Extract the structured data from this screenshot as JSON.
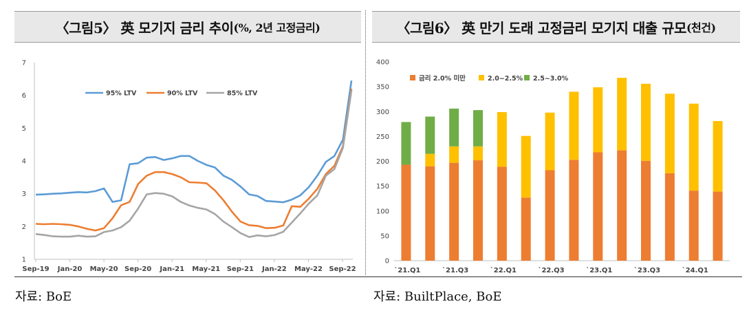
{
  "left": {
    "title_main": "〈그림5〉 英 모기지 금리 추이",
    "title_sub": "(%, 2년 고정금리)",
    "source": "자료: BoE"
  },
  "right": {
    "title_main": "〈그림6〉 英 만기 도래 고정금리 모기지 대출 규모",
    "title_sub": "(천건)",
    "source": "자료: BuiltPlace, BoE"
  },
  "chart_data": [
    {
      "type": "line",
      "x_tick_labels": [
        "Sep-19",
        "Jan-20",
        "May-20",
        "Sep-20",
        "Jan-21",
        "May-21",
        "Sep-21",
        "Jan-22",
        "May-22",
        "Sep-22"
      ],
      "y_ticks": [
        1,
        2,
        3,
        4,
        5,
        6,
        7
      ],
      "ylim": [
        1,
        7
      ],
      "legend_position": "top-center",
      "grid": false,
      "series": [
        {
          "name": "95% LTV",
          "color": "#5b9bd5",
          "values": [
            2.97,
            2.98,
            3.0,
            3.01,
            3.03,
            3.05,
            3.04,
            3.08,
            3.16,
            2.75,
            2.8,
            3.9,
            3.93,
            4.1,
            4.12,
            4.03,
            4.08,
            4.15,
            4.15,
            4.0,
            3.88,
            3.8,
            3.55,
            3.42,
            3.22,
            2.98,
            2.93,
            2.78,
            2.76,
            2.74,
            2.82,
            2.95,
            3.2,
            3.55,
            3.97,
            4.15,
            4.65,
            6.45
          ]
        },
        {
          "name": "90% LTV",
          "color": "#ed7d31",
          "values": [
            2.08,
            2.07,
            2.08,
            2.07,
            2.05,
            2.0,
            1.93,
            1.88,
            1.95,
            2.25,
            2.65,
            2.75,
            3.3,
            3.55,
            3.66,
            3.66,
            3.6,
            3.5,
            3.35,
            3.34,
            3.32,
            3.1,
            2.8,
            2.45,
            2.15,
            2.04,
            2.02,
            1.95,
            1.96,
            2.03,
            2.62,
            2.6,
            2.85,
            3.15,
            3.6,
            3.85,
            4.45,
            6.2
          ]
        },
        {
          "name": "85% LTV",
          "color": "#a5a5a5",
          "values": [
            1.77,
            1.74,
            1.7,
            1.69,
            1.69,
            1.72,
            1.69,
            1.7,
            1.83,
            1.88,
            1.98,
            2.18,
            2.55,
            2.98,
            3.02,
            3.0,
            2.92,
            2.75,
            2.64,
            2.57,
            2.52,
            2.38,
            2.15,
            1.98,
            1.8,
            1.68,
            1.73,
            1.7,
            1.74,
            1.84,
            2.12,
            2.4,
            2.7,
            2.95,
            3.55,
            3.75,
            4.4,
            6.15
          ]
        }
      ]
    },
    {
      "type": "bar",
      "stacked": true,
      "categories": [
        "`21.Q1",
        "`21.Q2",
        "`21.Q3",
        "`21.Q4",
        "`22.Q1",
        "`22.Q2",
        "`22.Q3",
        "`22.Q4",
        "`23.Q1",
        "`23.Q2",
        "`23.Q3",
        "`23.Q4",
        "`24.Q1",
        "`24.Q2"
      ],
      "x_tick_labels": [
        "`21.Q1",
        "`21.Q3",
        "`22.Q1",
        "`22.Q3",
        "`23.Q1",
        "`23.Q3",
        "`24.Q1"
      ],
      "y_ticks": [
        0,
        50,
        100,
        150,
        200,
        250,
        300,
        350,
        400
      ],
      "ylim": [
        0,
        400
      ],
      "legend_position": "top-left",
      "grid": false,
      "series": [
        {
          "name": "금리 2.0% 미만",
          "color": "#ed7d31",
          "values": [
            193,
            190,
            197,
            202,
            189,
            127,
            182,
            203,
            218,
            222,
            201,
            176,
            141,
            139
          ]
        },
        {
          "name": "2.0~2.5%",
          "color": "#ffc000",
          "values": [
            0,
            25,
            33,
            28,
            110,
            124,
            116,
            137,
            131,
            146,
            155,
            160,
            175,
            142
          ]
        },
        {
          "name": "2.5~3.0%",
          "color": "#70ad47",
          "values": [
            86,
            75,
            76,
            73,
            0,
            0,
            0,
            0,
            0,
            0,
            0,
            0,
            0,
            0
          ]
        }
      ]
    }
  ]
}
